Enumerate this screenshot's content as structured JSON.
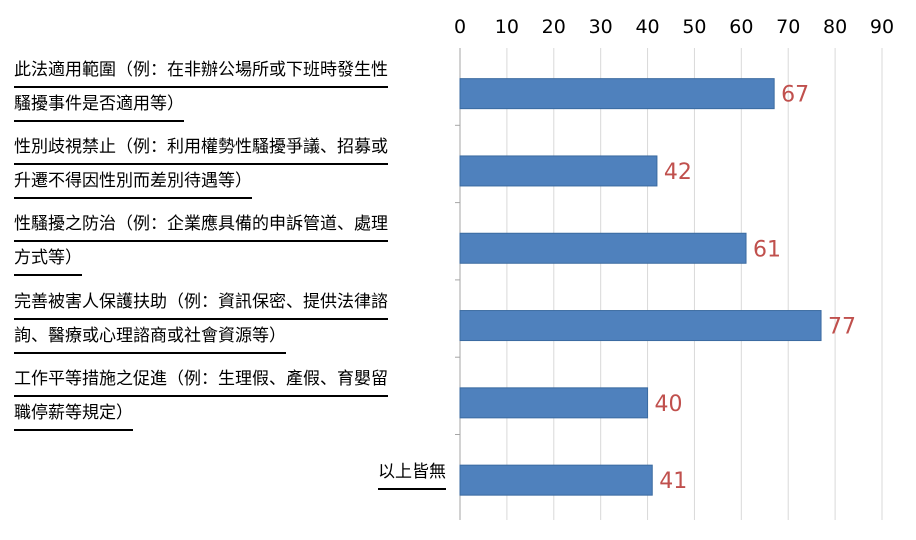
{
  "chart_data": {
    "type": "bar",
    "orientation": "horizontal",
    "title": "",
    "xlabel": "",
    "ylabel": "",
    "xlim": [
      0,
      90
    ],
    "ticks": [
      0,
      10,
      20,
      30,
      40,
      50,
      60,
      70,
      80,
      90
    ],
    "grid": true,
    "bar_color": "#4f81bd",
    "label_color": "#c0504d",
    "categories": [
      [
        "此法適用範圍（例：在非辦公場所或下班時發生性",
        "騷擾事件是否適用等）"
      ],
      [
        "性別歧視禁止（例：利用權勢性騷擾爭議、招募或",
        "升遷不得因性別而差別待遇等）"
      ],
      [
        "性騷擾之防治（例：企業應具備的申訴管道、處理",
        "方式等）"
      ],
      [
        "完善被害人保護扶助（例：資訊保密、提供法律諮",
        "詢、醫療或心理諮商或社會資源等）"
      ],
      [
        "工作平等措施之促進（例：生理假、產假、育嬰留",
        "職停薪等規定）"
      ],
      [
        "以上皆無"
      ]
    ],
    "values": [
      67,
      42,
      61,
      77,
      40,
      41
    ]
  }
}
